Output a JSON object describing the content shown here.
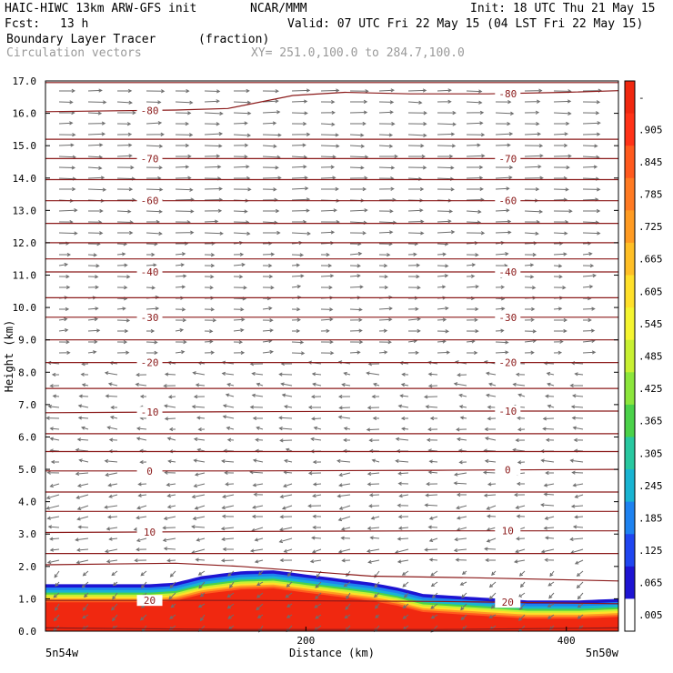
{
  "header": {
    "title_left": "HAIC-HIWC 13km ARW-GFS init",
    "org": "NCAR/MMM",
    "init": "Init: 18 UTC Thu 21 May 15",
    "fcst_label": "Fcst:",
    "fcst_value": "13 h",
    "valid": "Valid: 07 UTC Fri 22 May 15 (04 LST Fri 22 May 15)",
    "field_name": "Boundary Layer Tracer",
    "field_units": "(fraction)",
    "vector_label": "Circulation vectors",
    "xy_range": "XY= 251.0,100.0 to 284.7,100.0"
  },
  "chart_data": {
    "type": "heatmap",
    "ylabel": "Height (km)",
    "xlabel": "Distance (km)",
    "ylim": [
      0,
      17
    ],
    "xlim": [
      0,
      440
    ],
    "y_ticks": [
      "0.0",
      "1.0",
      "2.0",
      "3.0",
      "4.0",
      "5.0",
      "6.0",
      "7.0",
      "8.0",
      "9.0",
      "10.0",
      "11.0",
      "12.0",
      "13.0",
      "14.0",
      "15.0",
      "16.0",
      "17.0"
    ],
    "x_ticks": [
      {
        "value": 200,
        "label": "200"
      },
      {
        "value": 400,
        "label": "400"
      }
    ],
    "x_end_labels": {
      "left": "5n54w",
      "right": "5n50w"
    },
    "colorbar_labels": [
      "-",
      ".905",
      ".845",
      ".785",
      ".725",
      ".665",
      ".605",
      ".545",
      ".485",
      ".425",
      ".365",
      ".305",
      ".245",
      ".185",
      ".125",
      ".065",
      ".005"
    ],
    "colorbar_colors": [
      "#f02810",
      "#ff3318",
      "#ff5a1e",
      "#ff7a22",
      "#ff9b22",
      "#ffbf26",
      "#ffe02a",
      "#f5f530",
      "#c8f032",
      "#8ce63c",
      "#4bd24a",
      "#28c8a0",
      "#19b4d2",
      "#1e82f0",
      "#2046f0",
      "#1e14d2",
      "#ffffff"
    ],
    "temperature_contours": [
      {
        "label": "-80",
        "points": [
          [
            0,
            16.05
          ],
          [
            100,
            16.1
          ],
          [
            140,
            16.15
          ],
          [
            190,
            16.55
          ],
          [
            230,
            16.65
          ],
          [
            280,
            16.6
          ],
          [
            340,
            16.6
          ],
          [
            400,
            16.65
          ],
          [
            440,
            16.7
          ]
        ]
      },
      {
        "label": "-70",
        "points": [
          [
            0,
            14.6
          ],
          [
            150,
            14.6
          ],
          [
            300,
            14.6
          ],
          [
            440,
            14.6
          ]
        ]
      },
      {
        "label": "-60",
        "points": [
          [
            0,
            13.3
          ],
          [
            150,
            13.3
          ],
          [
            300,
            13.3
          ],
          [
            440,
            13.3
          ]
        ]
      },
      {
        "label": "-40",
        "points": [
          [
            0,
            11.1
          ],
          [
            150,
            11.1
          ],
          [
            300,
            11.1
          ],
          [
            440,
            11.1
          ]
        ]
      },
      {
        "label": "-30",
        "points": [
          [
            0,
            9.7
          ],
          [
            150,
            9.7
          ],
          [
            300,
            9.7
          ],
          [
            440,
            9.7
          ]
        ]
      },
      {
        "label": "-20",
        "points": [
          [
            0,
            8.3
          ],
          [
            150,
            8.3
          ],
          [
            300,
            8.3
          ],
          [
            440,
            8.3
          ]
        ]
      },
      {
        "label": "-10",
        "points": [
          [
            0,
            6.75
          ],
          [
            150,
            6.78
          ],
          [
            300,
            6.8
          ],
          [
            440,
            6.8
          ]
        ]
      },
      {
        "label": "0",
        "points": [
          [
            0,
            4.95
          ],
          [
            150,
            4.95
          ],
          [
            300,
            4.97
          ],
          [
            440,
            5.0
          ]
        ]
      },
      {
        "label": "10",
        "points": [
          [
            0,
            3.05
          ],
          [
            150,
            3.08
          ],
          [
            300,
            3.1
          ],
          [
            440,
            3.1
          ]
        ]
      },
      {
        "label": "20",
        "points": [
          [
            0,
            0.95
          ],
          [
            150,
            0.95
          ],
          [
            300,
            0.92
          ],
          [
            440,
            0.85
          ]
        ]
      }
    ],
    "unlabeled_contours": [
      {
        "points": [
          [
            0,
            16.95
          ],
          [
            150,
            16.95
          ],
          [
            300,
            16.95
          ],
          [
            440,
            16.95
          ]
        ]
      },
      {
        "points": [
          [
            0,
            15.2
          ],
          [
            200,
            15.2
          ],
          [
            440,
            15.2
          ]
        ]
      },
      {
        "points": [
          [
            0,
            13.95
          ],
          [
            200,
            13.95
          ],
          [
            440,
            13.95
          ]
        ]
      },
      {
        "points": [
          [
            0,
            12.6
          ],
          [
            200,
            12.6
          ],
          [
            440,
            12.6
          ]
        ]
      },
      {
        "points": [
          [
            0,
            12.0
          ],
          [
            200,
            12.0
          ],
          [
            440,
            12.0
          ]
        ]
      },
      {
        "points": [
          [
            0,
            11.5
          ],
          [
            200,
            11.5
          ],
          [
            440,
            11.5
          ]
        ]
      },
      {
        "points": [
          [
            0,
            10.3
          ],
          [
            200,
            10.3
          ],
          [
            440,
            10.3
          ]
        ]
      },
      {
        "points": [
          [
            0,
            9.0
          ],
          [
            200,
            9.0
          ],
          [
            440,
            9.0
          ]
        ]
      },
      {
        "points": [
          [
            0,
            7.5
          ],
          [
            200,
            7.5
          ],
          [
            440,
            7.5
          ]
        ]
      },
      {
        "points": [
          [
            0,
            6.1
          ],
          [
            200,
            6.1
          ],
          [
            440,
            6.1
          ]
        ]
      },
      {
        "points": [
          [
            0,
            5.55
          ],
          [
            200,
            5.55
          ],
          [
            440,
            5.55
          ]
        ]
      },
      {
        "points": [
          [
            0,
            4.3
          ],
          [
            200,
            4.3
          ],
          [
            440,
            4.3
          ]
        ]
      },
      {
        "points": [
          [
            0,
            3.7
          ],
          [
            200,
            3.7
          ],
          [
            440,
            3.7
          ]
        ]
      },
      {
        "points": [
          [
            0,
            2.4
          ],
          [
            200,
            2.4
          ],
          [
            440,
            2.4
          ]
        ]
      },
      {
        "points": [
          [
            0,
            2.05
          ],
          [
            100,
            2.1
          ],
          [
            150,
            2.0
          ],
          [
            250,
            1.7
          ],
          [
            330,
            1.65
          ],
          [
            440,
            1.55
          ]
        ]
      },
      {
        "points": [
          [
            0,
            0.1
          ],
          [
            150,
            0.05
          ],
          [
            300,
            0.05
          ],
          [
            440,
            0.1
          ]
        ]
      }
    ],
    "pbl_top_km": [
      [
        0,
        1.45
      ],
      [
        80,
        1.45
      ],
      [
        100,
        1.5
      ],
      [
        120,
        1.7
      ],
      [
        150,
        1.85
      ],
      [
        175,
        1.88
      ],
      [
        210,
        1.7
      ],
      [
        250,
        1.5
      ],
      [
        270,
        1.35
      ],
      [
        290,
        1.15
      ],
      [
        330,
        1.05
      ],
      [
        370,
        0.95
      ],
      [
        410,
        0.95
      ],
      [
        440,
        1.0
      ]
    ],
    "tracer_bands": [
      {
        "offset_km": 0.0,
        "color": "#1e14d2"
      },
      {
        "offset_km": 0.1,
        "color": "#1e82f0"
      },
      {
        "offset_km": 0.18,
        "color": "#19b4d2"
      },
      {
        "offset_km": 0.26,
        "color": "#4bd24a"
      },
      {
        "offset_km": 0.32,
        "color": "#c8f032"
      },
      {
        "offset_km": 0.38,
        "color": "#ffe02a"
      },
      {
        "offset_km": 0.44,
        "color": "#ff9b22"
      },
      {
        "offset_km": 0.5,
        "color": "#ff5a1e"
      },
      {
        "offset_km": 0.56,
        "color": "#f02810"
      }
    ],
    "grid": false
  }
}
